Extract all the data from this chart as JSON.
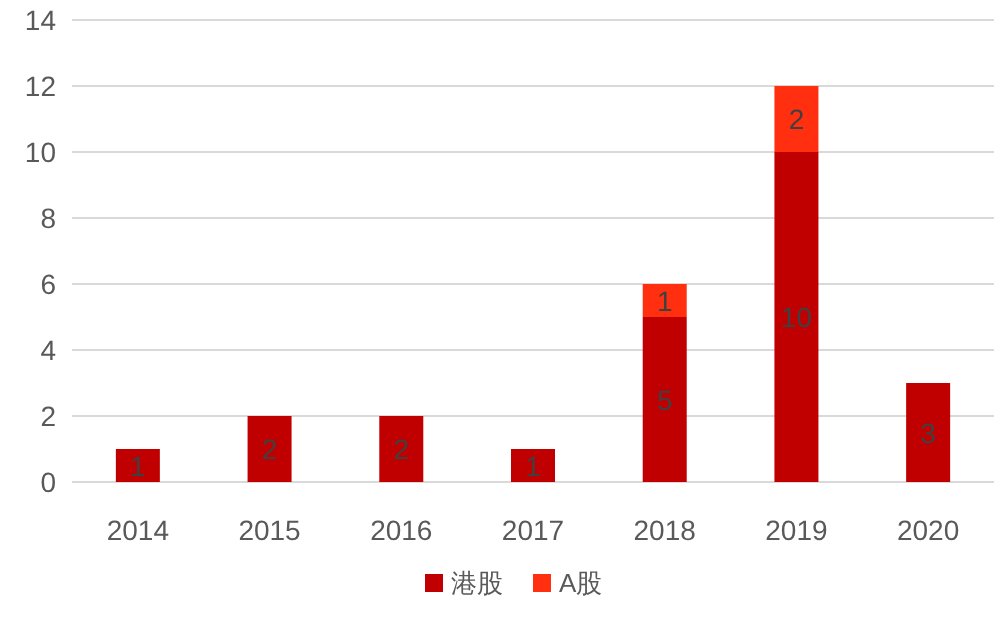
{
  "chart_data": {
    "type": "bar",
    "stacked": true,
    "categories": [
      "2014",
      "2015",
      "2016",
      "2017",
      "2018",
      "2019",
      "2020"
    ],
    "series": [
      {
        "name": "港股",
        "color": "#c00000",
        "values": [
          1,
          2,
          2,
          1,
          5,
          10,
          3
        ],
        "value_labels": [
          "1",
          "2",
          "2",
          "1",
          "5",
          "10",
          "3"
        ]
      },
      {
        "name": "A股",
        "color": "#ff2f0f",
        "values": [
          null,
          null,
          null,
          null,
          1,
          2,
          null
        ],
        "value_labels": [
          null,
          null,
          null,
          null,
          "1",
          "2",
          null
        ]
      }
    ],
    "ylim": [
      0,
      14
    ],
    "yticks": [
      0,
      2,
      4,
      6,
      8,
      10,
      12,
      14
    ],
    "grid": "y",
    "legend": "bottom"
  }
}
